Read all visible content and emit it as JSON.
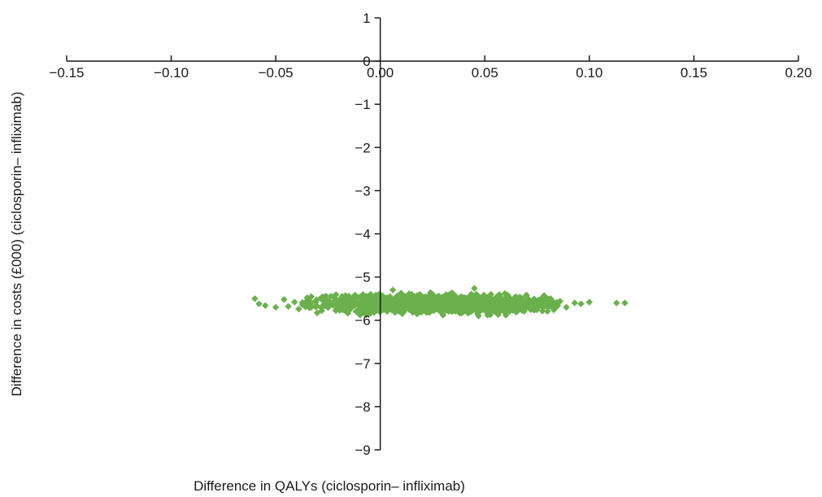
{
  "chart_data": {
    "type": "scatter",
    "title": "",
    "xlabel": "Difference in QALYs  (ciclosporin– infliximab)",
    "ylabel": "Difference in costs (£000) (ciclosporin– infliximab)",
    "xlim": [
      -0.15,
      0.2
    ],
    "ylim": [
      -9,
      1
    ],
    "x_ticks": [
      -0.15,
      -0.1,
      -0.05,
      0.0,
      0.05,
      0.1,
      0.15,
      0.2
    ],
    "x_tick_labels": [
      "−0.15",
      "−0.10",
      "−0.05",
      "0.00",
      "0.05",
      "0.10",
      "0.15",
      "0.20"
    ],
    "y_ticks": [
      1,
      0,
      -1,
      -2,
      -3,
      -4,
      -5,
      -6,
      -7,
      -8,
      -9
    ],
    "y_tick_labels": [
      "1",
      "0",
      "−1",
      "−2",
      "−3",
      "−4",
      "−5",
      "−6",
      "−7",
      "−8",
      "−9"
    ],
    "grid": false,
    "legend": "none",
    "marker": "diamond",
    "point_color": "#6ab04c",
    "axis_color": "#1a1a1a",
    "series": [
      {
        "points": [
          [
            -0.06,
            -5.5
          ],
          [
            -0.058,
            -5.62
          ],
          [
            -0.055,
            -5.66
          ],
          [
            -0.05,
            -5.7
          ],
          [
            -0.046,
            -5.52
          ],
          [
            -0.044,
            -5.68
          ],
          [
            -0.041,
            -5.58
          ],
          [
            -0.039,
            -5.74
          ],
          [
            -0.037,
            -5.62
          ],
          [
            -0.035,
            -5.48
          ],
          [
            -0.033,
            -5.7
          ],
          [
            -0.031,
            -5.56
          ],
          [
            -0.028,
            -5.78
          ],
          [
            -0.026,
            -5.44
          ],
          [
            -0.024,
            -5.64
          ],
          [
            -0.021,
            -5.52
          ],
          [
            -0.018,
            -5.76
          ],
          [
            -0.015,
            -5.58
          ],
          [
            -0.012,
            -5.42
          ],
          [
            -0.009,
            -5.7
          ],
          [
            -0.006,
            -5.56
          ],
          [
            -0.003,
            -5.82
          ],
          [
            0.0,
            -5.46
          ],
          [
            0.003,
            -5.66
          ],
          [
            0.006,
            -5.3
          ],
          [
            0.009,
            -5.78
          ],
          [
            0.012,
            -5.52
          ],
          [
            0.015,
            -5.4
          ],
          [
            0.018,
            -5.84
          ],
          [
            0.021,
            -5.6
          ],
          [
            0.024,
            -5.36
          ],
          [
            0.027,
            -5.72
          ],
          [
            0.03,
            -5.88
          ],
          [
            0.033,
            -5.44
          ],
          [
            0.036,
            -5.66
          ],
          [
            0.039,
            -5.8
          ],
          [
            0.042,
            -5.5
          ],
          [
            0.045,
            -5.26
          ],
          [
            0.047,
            -5.9
          ],
          [
            0.05,
            -5.62
          ],
          [
            0.053,
            -5.4
          ],
          [
            0.056,
            -5.82
          ],
          [
            0.059,
            -5.56
          ],
          [
            0.062,
            -5.72
          ],
          [
            0.065,
            -5.46
          ],
          [
            0.068,
            -5.78
          ],
          [
            0.071,
            -5.58
          ],
          [
            0.074,
            -5.7
          ],
          [
            0.077,
            -5.5
          ],
          [
            0.08,
            -5.66
          ],
          [
            0.083,
            -5.76
          ],
          [
            0.086,
            -5.56
          ],
          [
            0.089,
            -5.7
          ],
          [
            0.093,
            -5.6
          ],
          [
            0.096,
            -5.62
          ],
          [
            0.1,
            -5.58
          ],
          [
            0.113,
            -5.6
          ],
          [
            0.117,
            -5.6
          ]
        ],
        "dense_band": {
          "x_range": [
            -0.04,
            0.088
          ],
          "y_center": -5.62,
          "y_spread": 0.18,
          "peak_x": 0.03
        }
      }
    ]
  }
}
